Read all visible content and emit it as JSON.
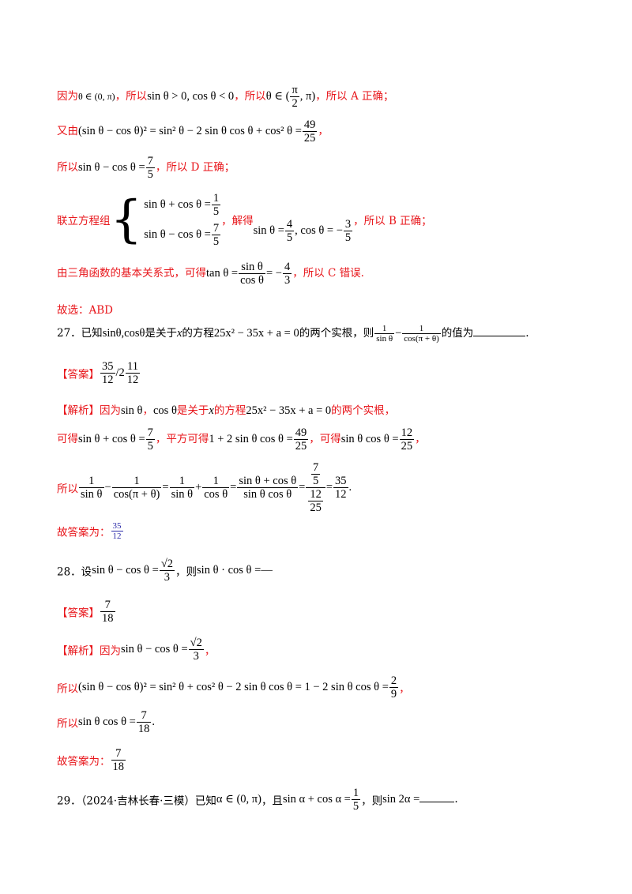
{
  "l1": {
    "a": "因为",
    "b": "θ ∈ (0, π)",
    "c": "，所以",
    "d": "sin θ > 0, cos θ < 0",
    "e": "，所以",
    "f": "θ ∈ (",
    "g": "π",
    "h": "2",
    "i": ", π)",
    "j": "，所以 A 正确；"
  },
  "l2": {
    "a": "又由",
    "b": "(sin θ − cos θ)² = sin² θ − 2 sin θ cos θ + cos² θ =",
    "c": "49",
    "d": "25",
    "e": "，"
  },
  "l3": {
    "a": "所以",
    "b": "sin θ − cos θ =",
    "c": "7",
    "d": "5",
    "e": "，所以 D 正确；"
  },
  "l4": {
    "a": "联立方程组",
    "s1": "sin θ + cos θ =",
    "s1n": "1",
    "s1d": "5",
    "s2": "sin θ − cos θ =",
    "s2n": "7",
    "s2d": "5",
    "b": "，解得",
    "c": "sin θ =",
    "cn": "4",
    "cd": "5",
    "e": ", cos θ = −",
    "en": "3",
    "ed": "5",
    "f": "，所以 B 正确；"
  },
  "l5": {
    "a": "由三角函数的基本关系式，可得",
    "b": "tan θ =",
    "bn": "sin θ",
    "bd": "cos θ",
    "c": "= −",
    "cn": "4",
    "cd": "3",
    "e": "，所以 C 错误."
  },
  "l6": "故选：ABD",
  "q27": {
    "a": "27．已知",
    "b": "sinθ,cosθ",
    "c": "是关于",
    "d": "x",
    "e": "的方程",
    "f": "25x² − 35x + a = 0",
    "g": "的两个实根，则",
    "h1n": "1",
    "h1d": "sin θ",
    "minus": "−",
    "h2n": "1",
    "h2d": "cos(π + θ)",
    "i": "的值为",
    "end": "."
  },
  "a27": {
    "tag": "【答案】",
    "n": "35",
    "d": "12",
    "sep": "/2",
    "w": "",
    "n2": "11",
    "d2": "12"
  },
  "j27a": {
    "a": "【解析】因为",
    "b": "sin θ",
    "c": "，",
    "d": "cos θ",
    "e": "是关于",
    "f": "x",
    "g": "的方程",
    "h": "25x² − 35x + a = 0",
    "i": "的两个实根，"
  },
  "j27b": {
    "a": "可得",
    "b": "sin θ + cos θ =",
    "bn": "7",
    "bd": "5",
    "c": "，平方可得",
    "d": "1 + 2 sin θ cos θ =",
    "dn": "49",
    "dd": "25",
    "e": "，可得",
    "f": "sin θ cos θ =",
    "fn": "12",
    "fd": "25",
    "g": "，"
  },
  "j27c": {
    "a": "所以",
    "f1n": "1",
    "f1d": "sin θ",
    "m1": "−",
    "f2n": "1",
    "f2d": "cos(π + θ)",
    "eq1": "=",
    "f3n": "1",
    "f3d": "sin θ",
    "p": "+",
    "f4n": "1",
    "f4d": "cos θ",
    "eq2": "=",
    "f5n": "sin θ + cos θ",
    "f5d": "sin θ cos θ",
    "eq3": "=",
    "bn_top": "7",
    "bn_bot": "5",
    "bd_top": "12",
    "bd_bot": "25",
    "eq4": "=",
    "rn": "35",
    "rd": "12",
    "end": "."
  },
  "j27d": {
    "a": "故答案为：",
    "n": "35",
    "d": "12"
  },
  "q28": {
    "a": "28．设",
    "b": "sin θ − cos θ =",
    "bn": "√2",
    "bd": "3",
    "c": "，则",
    "d": "sin θ · cos θ =",
    "e": "—"
  },
  "a28": {
    "tag": "【答案】",
    "n": "7",
    "d": "18"
  },
  "j28a": {
    "a": "【解析】因为",
    "b": "sin θ − cos θ =",
    "bn": "√2",
    "bd": "3",
    "c": "，"
  },
  "j28b": {
    "a": "所以",
    "b": "(sin θ − cos θ)² = sin² θ + cos² θ − 2 sin θ cos θ = 1 − 2 sin θ cos θ =",
    "n": "2",
    "d": "9",
    "c": "，"
  },
  "j28c": {
    "a": "所以",
    "b": "sin θ cos θ =",
    "n": "7",
    "d": "18",
    "c": "."
  },
  "j28d": {
    "a": "故答案为：",
    "n": "7",
    "d": "18"
  },
  "q29": {
    "a": "29．（2024·吉林长春·三模）已知",
    "b": "α ∈ (0, π)",
    "c": "，且",
    "d": "sin α + cos α =",
    "n": "1",
    "dd": "5",
    "e": "，则",
    "f": "sin 2α =",
    "end": "."
  }
}
